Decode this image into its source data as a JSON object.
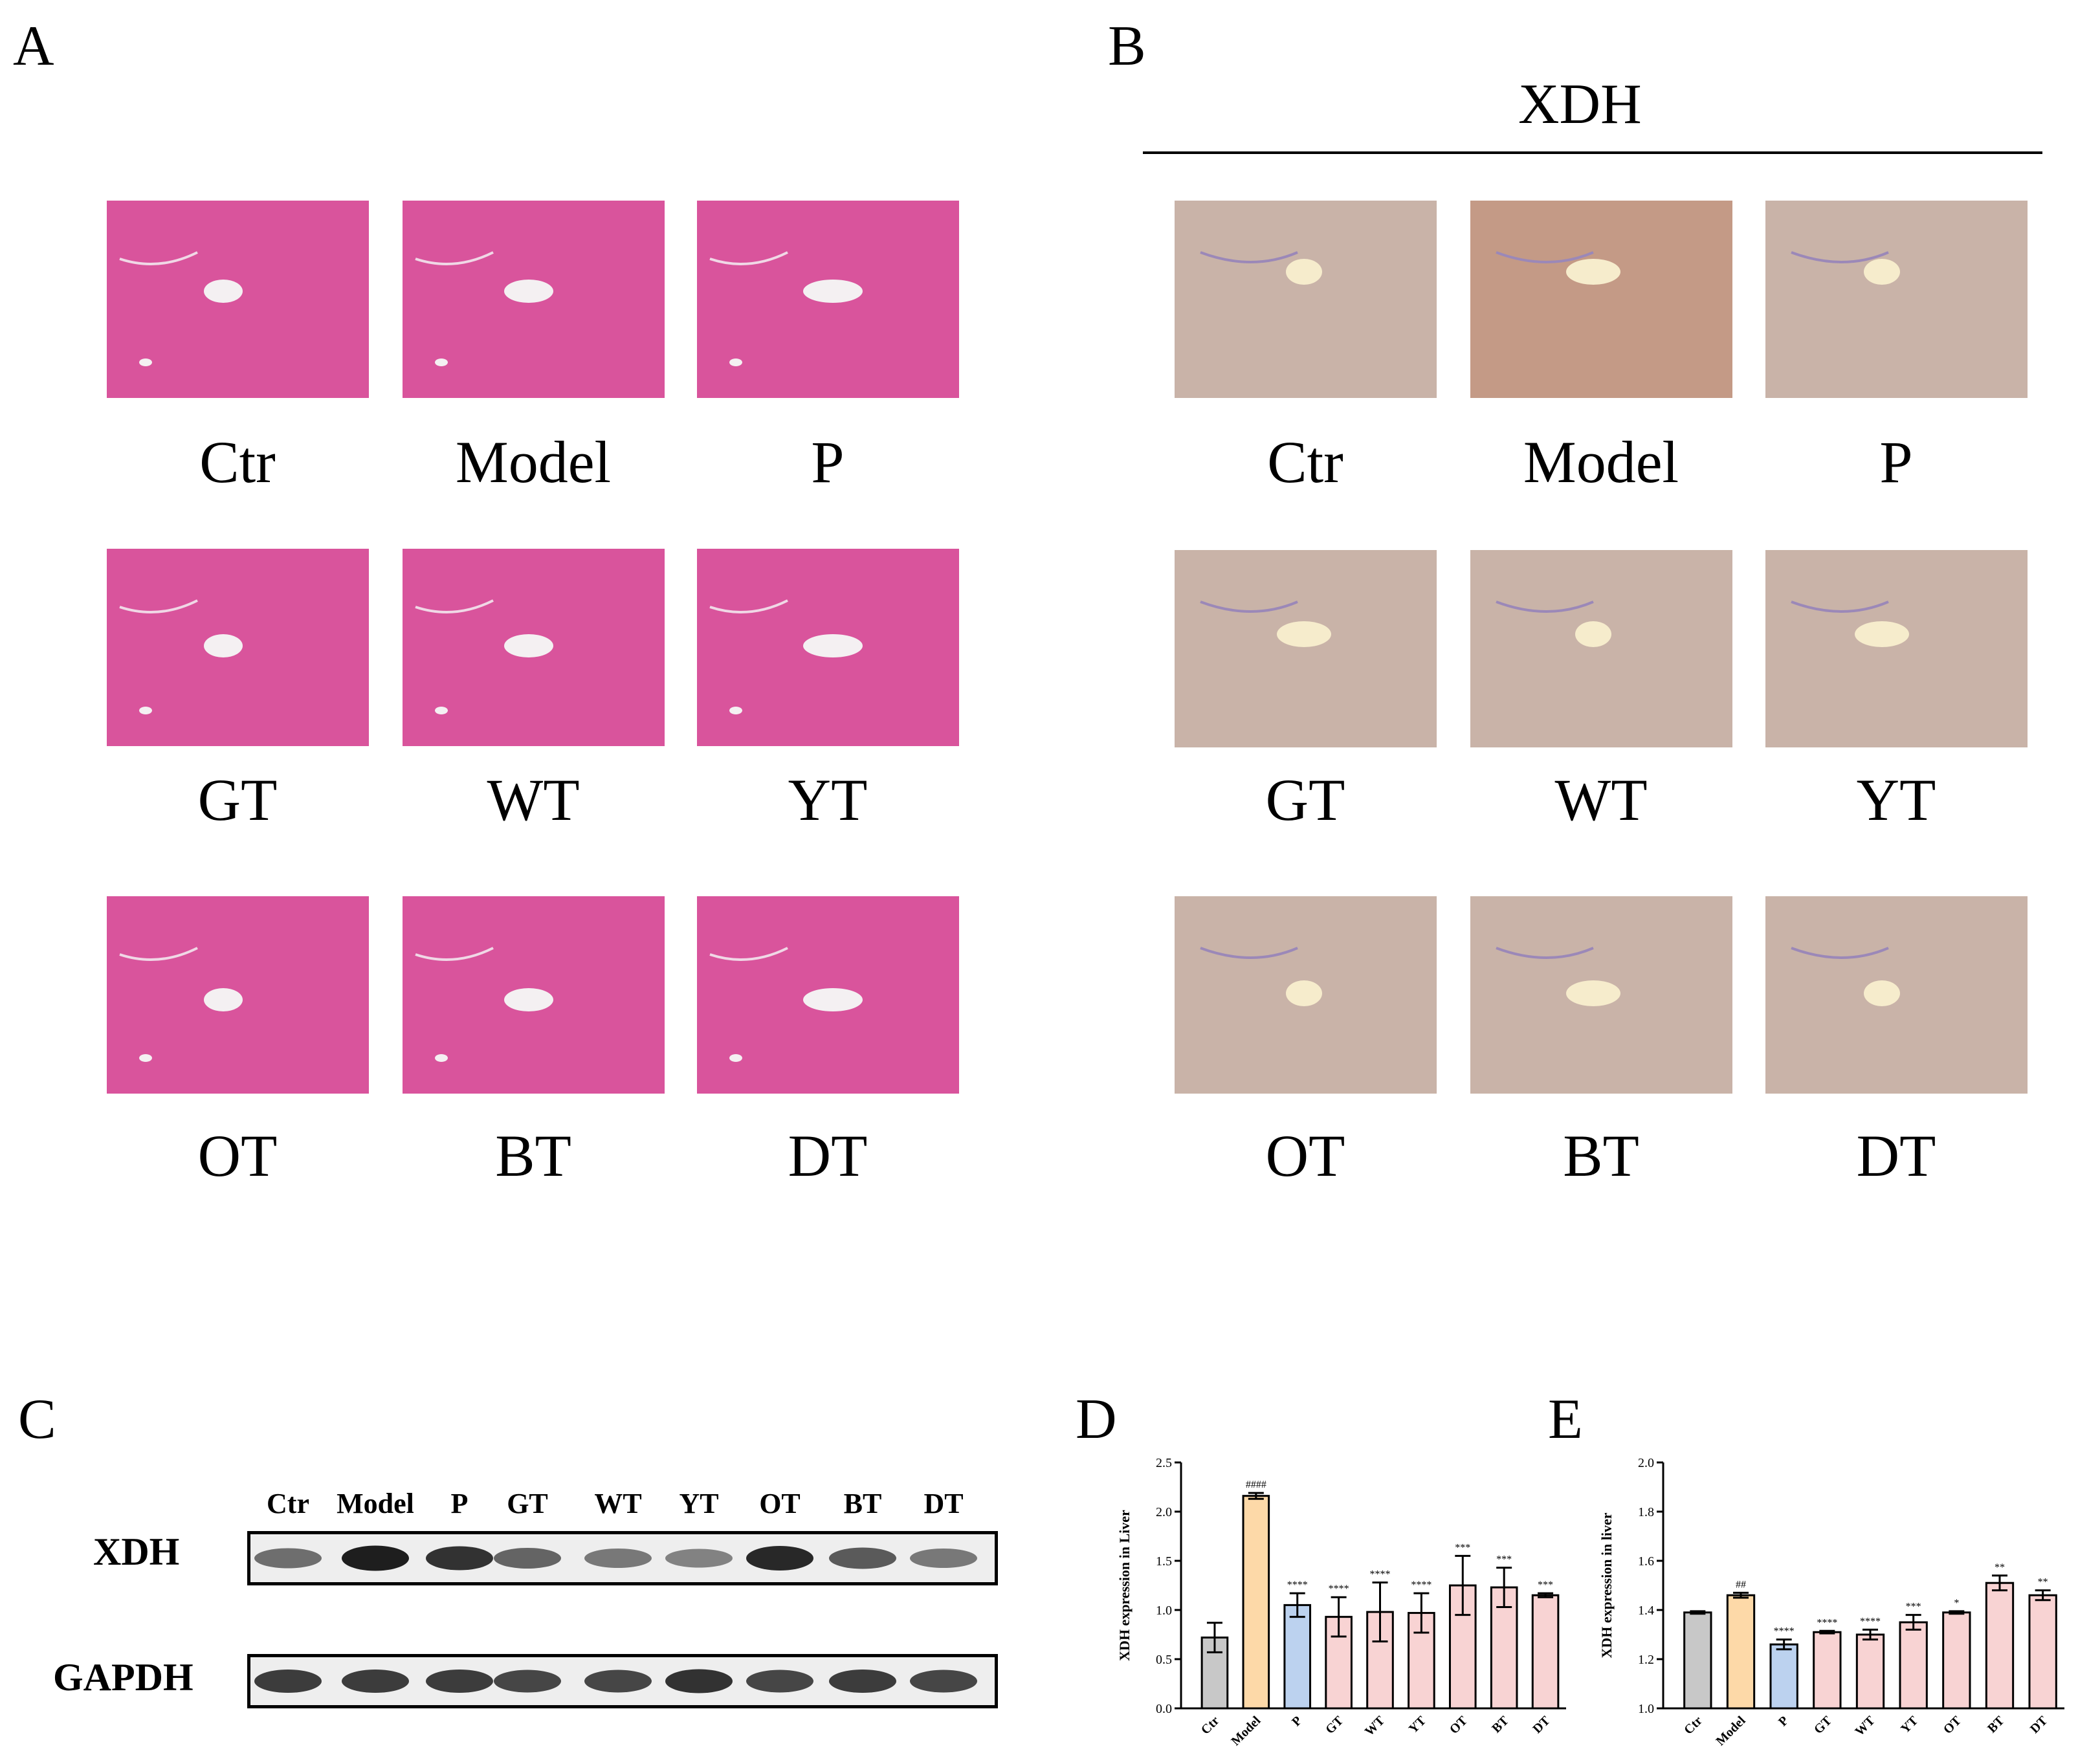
{
  "panels": {
    "A": "A",
    "B": "B",
    "C": "C",
    "D": "D",
    "E": "E"
  },
  "histology": {
    "groups": [
      "Ctr",
      "Model",
      "P",
      "GT",
      "WT",
      "YT",
      "OT",
      "BT",
      "DT"
    ],
    "he_color": "#d9549c",
    "ihc_color": "#c9b3a8",
    "ihc_title": "XDH"
  },
  "western_blot": {
    "lanes": [
      "Ctr",
      "Model",
      "P",
      "GT",
      "WT",
      "YT",
      "OT",
      "BT",
      "DT"
    ],
    "rows": [
      "XDH",
      "GAPDH"
    ],
    "xdh_intensity": [
      0.55,
      0.95,
      0.85,
      0.6,
      0.5,
      0.45,
      0.9,
      0.65,
      0.5
    ],
    "gapdh_intensity": [
      0.8,
      0.8,
      0.8,
      0.75,
      0.75,
      0.85,
      0.75,
      0.8,
      0.75
    ]
  },
  "chart_data": [
    {
      "type": "bar",
      "panel": "D",
      "ylabel": "XDH  expression in Liver",
      "categories": [
        "Ctr",
        "Model",
        "P",
        "GT",
        "WT",
        "YT",
        "OT",
        "BT",
        "DT"
      ],
      "values": [
        0.72,
        2.16,
        1.05,
        0.93,
        0.98,
        0.97,
        1.25,
        1.23,
        1.15
      ],
      "errors": [
        0.15,
        0.03,
        0.12,
        0.2,
        0.3,
        0.2,
        0.3,
        0.2,
        0.02
      ],
      "annotations": [
        "",
        "####",
        "****",
        "****",
        "****",
        "****",
        "***",
        "***",
        "***"
      ],
      "colors": [
        "#c8c8c8",
        "#fdd9a8",
        "#bcd2ef",
        "#f8d3d3",
        "#f8d3d3",
        "#f8d3d3",
        "#f8d3d3",
        "#f8d3d3",
        "#f8d3d3"
      ],
      "ylim": [
        0,
        2.5
      ],
      "yticks": [
        "0.0",
        "0.5",
        "1.0",
        "1.5",
        "2.0",
        "2.5"
      ]
    },
    {
      "type": "bar",
      "panel": "E",
      "ylabel": "XDH  expression in liver",
      "categories": [
        "Ctr",
        "Model",
        "P",
        "GT",
        "WT",
        "YT",
        "OT",
        "BT",
        "DT"
      ],
      "values": [
        1.39,
        1.46,
        1.26,
        1.31,
        1.3,
        1.35,
        1.39,
        1.51,
        1.46
      ],
      "errors": [
        0.005,
        0.01,
        0.02,
        0.005,
        0.02,
        0.03,
        0.005,
        0.03,
        0.02
      ],
      "annotations": [
        "",
        "##",
        "****",
        "****",
        "****",
        "***",
        "*",
        "**",
        "**"
      ],
      "colors": [
        "#c8c8c8",
        "#fdd9a8",
        "#bcd2ef",
        "#f8d3d3",
        "#f8d3d3",
        "#f8d3d3",
        "#f8d3d3",
        "#f8d3d3",
        "#f8d3d3"
      ],
      "ylim": [
        1.0,
        2.0
      ],
      "yticks": [
        "1.0",
        "1.2",
        "1.4",
        "1.6",
        "1.8",
        "2.0"
      ]
    }
  ]
}
